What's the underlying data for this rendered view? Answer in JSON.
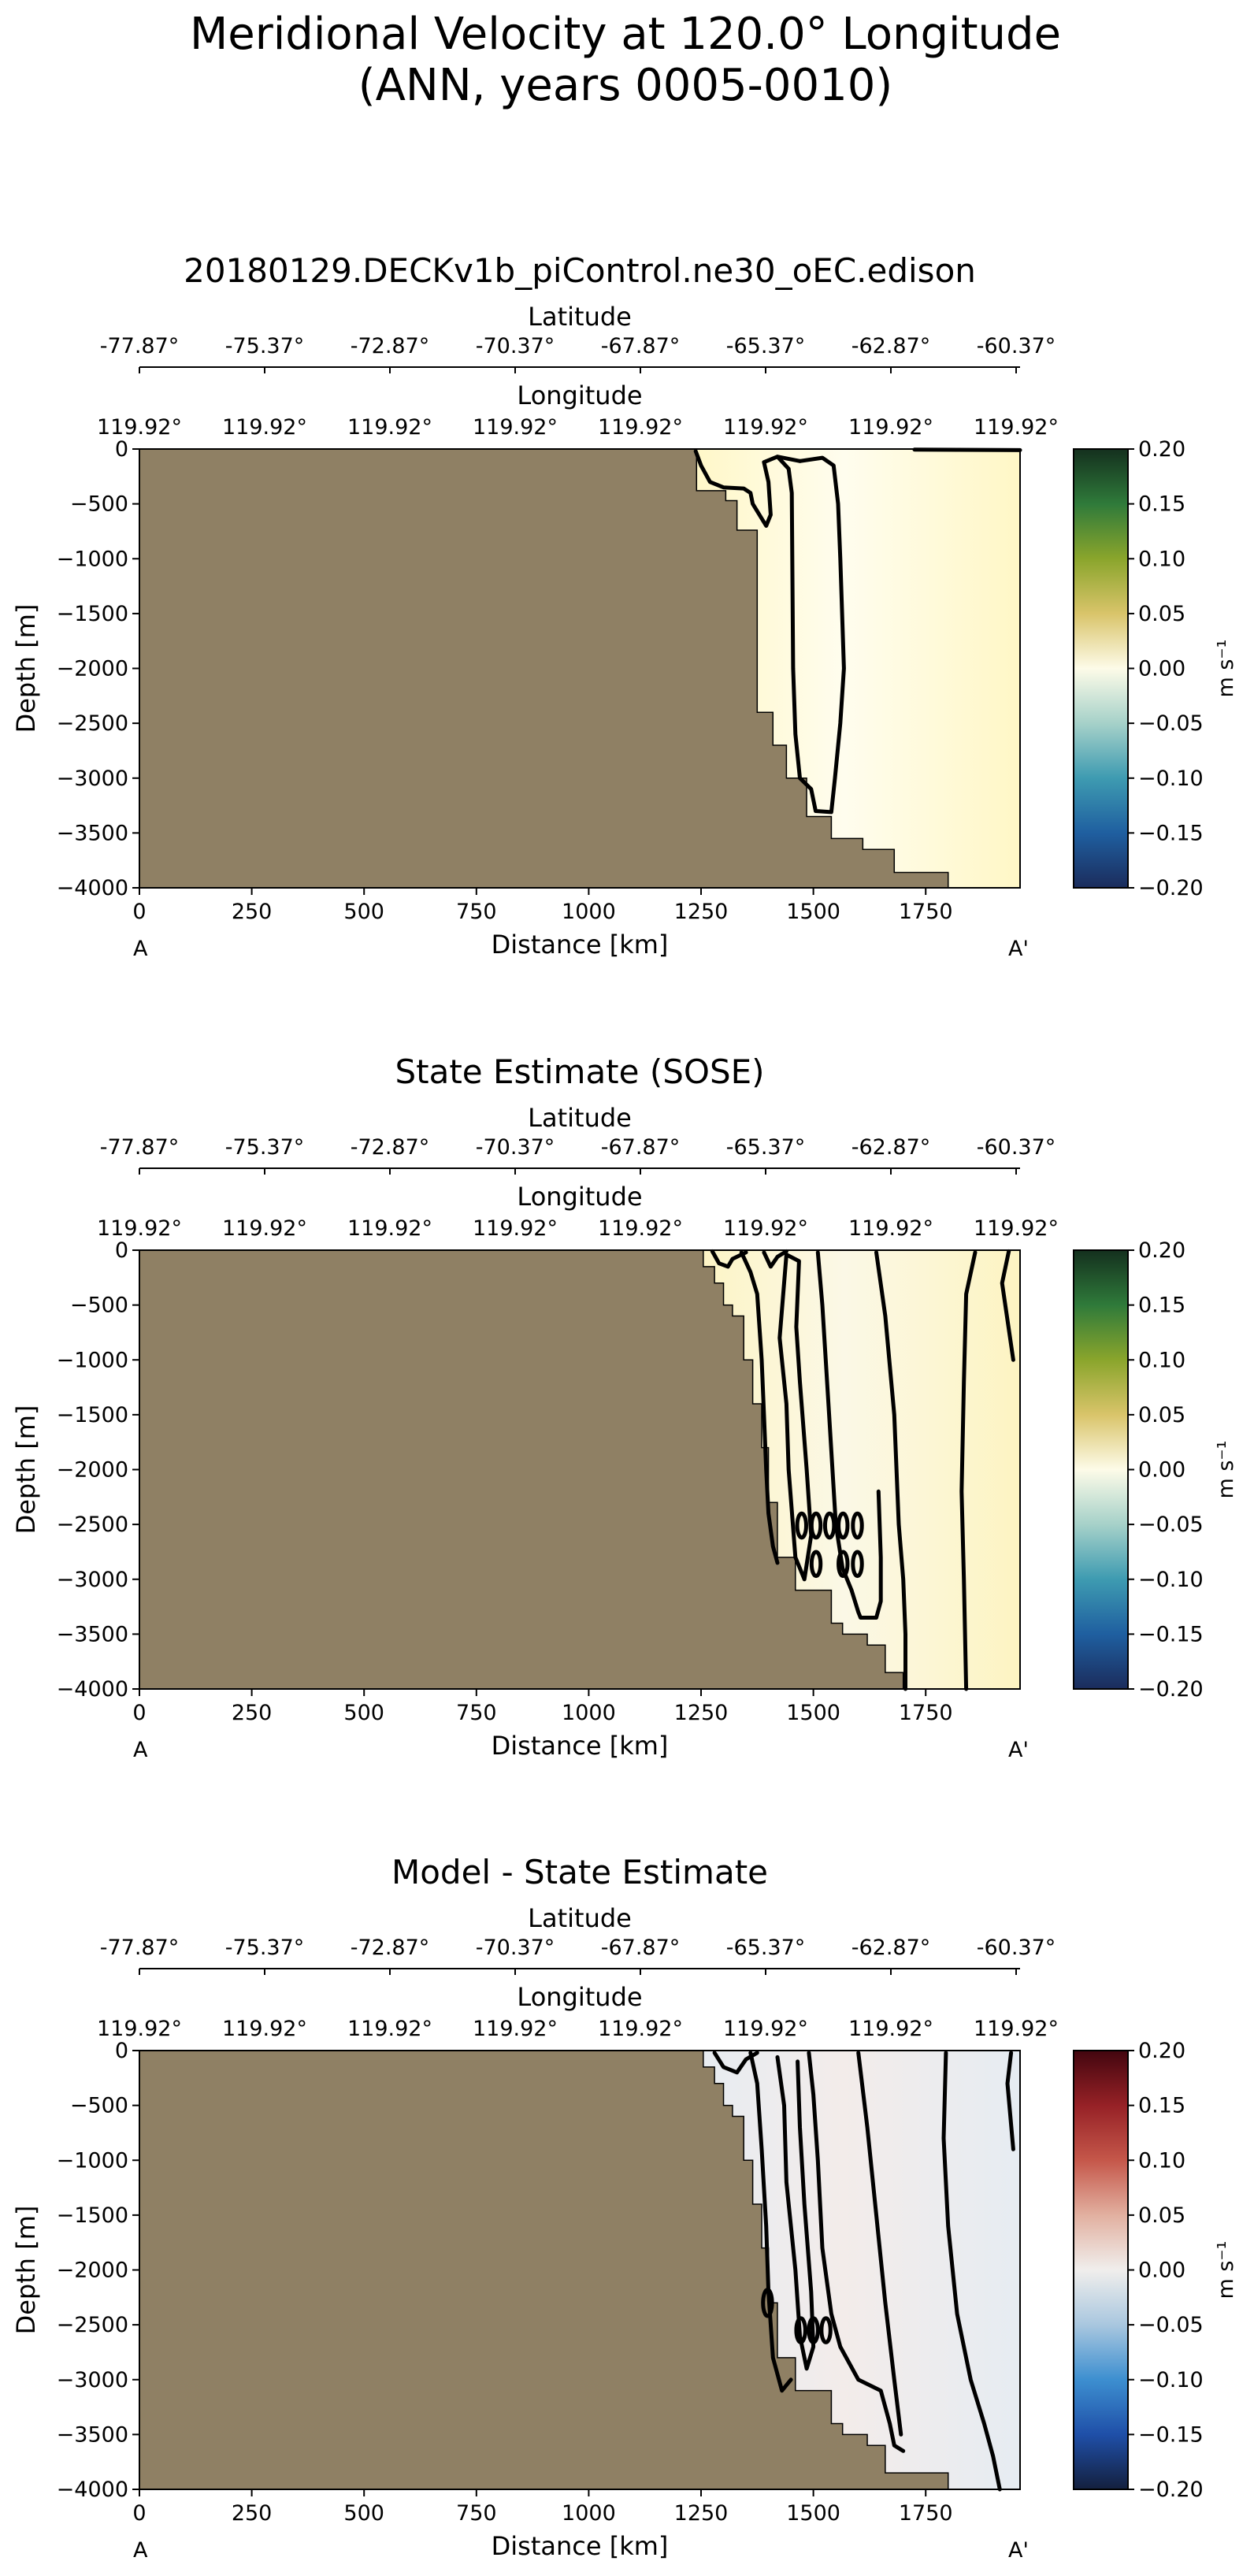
{
  "figure": {
    "title_line1": "Meridional Velocity at 120.0° Longitude",
    "title_line2": "(ANN, years 0005-0010)"
  },
  "chart_data": [
    {
      "type": "heatmap",
      "title": "20180129.DECKv1b_piControl.ne30_oEC.edison",
      "xlabel": "Distance [km]",
      "ylabel": "Depth [m]",
      "xlim": [
        0,
        1960
      ],
      "ylim": [
        -4000,
        0
      ],
      "x_ticks": [
        0,
        250,
        500,
        750,
        1000,
        1250,
        1500,
        1750
      ],
      "y_ticks": [
        0,
        -500,
        -1000,
        -1500,
        -2000,
        -2500,
        -3000,
        -3500,
        -4000
      ],
      "lat_label": "Latitude",
      "lat_ticks": [
        "-77.87°",
        "-75.37°",
        "-72.87°",
        "-70.37°",
        "-67.87°",
        "-65.37°",
        "-62.87°",
        "-60.37°"
      ],
      "lon_label": "Longitude",
      "lon_ticks": [
        "119.92°",
        "119.92°",
        "119.92°",
        "119.92°",
        "119.92°",
        "119.92°",
        "119.92°",
        "119.92°"
      ],
      "section_start": "A",
      "section_end": "A'",
      "colorbar": {
        "label": "m s⁻¹",
        "ticks": [
          "0.20",
          "0.15",
          "0.10",
          "0.05",
          "0.00",
          "−0.05",
          "−0.10",
          "−0.15",
          "−0.20"
        ],
        "range": [
          -0.2,
          0.2
        ],
        "colormap": "delta",
        "colors": [
          "#1b2c5c",
          "#1f5fa0",
          "#3e9bb1",
          "#a6d1c9",
          "#fdfbe8",
          "#d9c46a",
          "#8aa52c",
          "#2f7a3a",
          "#14301e"
        ]
      },
      "land_color": "#8f8064",
      "field_color": "#fffdee",
      "field_tint": "#fff7c6",
      "bathymetry": [
        [
          1240,
          0
        ],
        [
          1240,
          -380
        ],
        [
          1305,
          -380
        ],
        [
          1305,
          -470
        ],
        [
          1330,
          -470
        ],
        [
          1330,
          -740
        ],
        [
          1375,
          -740
        ],
        [
          1375,
          -2400
        ],
        [
          1410,
          -2400
        ],
        [
          1410,
          -2700
        ],
        [
          1440,
          -2700
        ],
        [
          1440,
          -3000
        ],
        [
          1485,
          -3000
        ],
        [
          1485,
          -3350
        ],
        [
          1540,
          -3350
        ],
        [
          1540,
          -3550
        ],
        [
          1610,
          -3550
        ],
        [
          1610,
          -3650
        ],
        [
          1680,
          -3650
        ],
        [
          1680,
          -3860
        ],
        [
          1800,
          -3860
        ],
        [
          1800,
          -4000
        ]
      ],
      "zero_contours": [
        [
          [
            1238,
            -20
          ],
          [
            1250,
            -150
          ],
          [
            1270,
            -300
          ],
          [
            1300,
            -350
          ],
          [
            1345,
            -360
          ],
          [
            1360,
            -400
          ],
          [
            1365,
            -500
          ],
          [
            1395,
            -700
          ],
          [
            1405,
            -600
          ],
          [
            1400,
            -300
          ],
          [
            1390,
            -120
          ],
          [
            1420,
            -70
          ],
          [
            1470,
            -110
          ]
        ],
        [
          [
            1420,
            -70
          ],
          [
            1445,
            -180
          ],
          [
            1452,
            -400
          ],
          [
            1455,
            -2000
          ],
          [
            1460,
            -2600
          ],
          [
            1470,
            -3000
          ],
          [
            1495,
            -3100
          ],
          [
            1505,
            -3300
          ],
          [
            1540,
            -3310
          ],
          [
            1548,
            -3000
          ],
          [
            1560,
            -2500
          ],
          [
            1568,
            -2000
          ],
          [
            1560,
            -1000
          ],
          [
            1555,
            -500
          ],
          [
            1545,
            -150
          ],
          [
            1520,
            -80
          ],
          [
            1470,
            -110
          ]
        ],
        [
          [
            1725,
            -6
          ],
          [
            1960,
            -10
          ]
        ]
      ]
    },
    {
      "type": "heatmap",
      "title": "State Estimate (SOSE)",
      "xlabel": "Distance [km]",
      "ylabel": "Depth [m]",
      "xlim": [
        0,
        1960
      ],
      "ylim": [
        -4000,
        0
      ],
      "x_ticks": [
        0,
        250,
        500,
        750,
        1000,
        1250,
        1500,
        1750
      ],
      "y_ticks": [
        0,
        -500,
        -1000,
        -1500,
        -2000,
        -2500,
        -3000,
        -3500,
        -4000
      ],
      "lat_label": "Latitude",
      "lat_ticks": [
        "-77.87°",
        "-75.37°",
        "-72.87°",
        "-70.37°",
        "-67.87°",
        "-65.37°",
        "-62.87°",
        "-60.37°"
      ],
      "lon_label": "Longitude",
      "lon_ticks": [
        "119.92°",
        "119.92°",
        "119.92°",
        "119.92°",
        "119.92°",
        "119.92°",
        "119.92°",
        "119.92°"
      ],
      "section_start": "A",
      "section_end": "A'",
      "colorbar": {
        "label": "m s⁻¹",
        "ticks": [
          "0.20",
          "0.15",
          "0.10",
          "0.05",
          "0.00",
          "−0.05",
          "−0.10",
          "−0.15",
          "−0.20"
        ],
        "range": [
          -0.2,
          0.2
        ],
        "colormap": "delta",
        "colors": [
          "#1b2c5c",
          "#1f5fa0",
          "#3e9bb1",
          "#a6d1c9",
          "#fdfbe8",
          "#d9c46a",
          "#8aa52c",
          "#2f7a3a",
          "#14301e"
        ]
      },
      "land_color": "#8f8064",
      "field_color": "#fbf8e6",
      "field_tint": "#fdf4c2",
      "bathymetry": [
        [
          1255,
          0
        ],
        [
          1255,
          -150
        ],
        [
          1280,
          -150
        ],
        [
          1280,
          -300
        ],
        [
          1300,
          -300
        ],
        [
          1300,
          -500
        ],
        [
          1320,
          -500
        ],
        [
          1320,
          -600
        ],
        [
          1345,
          -600
        ],
        [
          1345,
          -1000
        ],
        [
          1365,
          -1000
        ],
        [
          1365,
          -1400
        ],
        [
          1385,
          -1400
        ],
        [
          1385,
          -1800
        ],
        [
          1400,
          -1800
        ],
        [
          1400,
          -2300
        ],
        [
          1420,
          -2300
        ],
        [
          1420,
          -2800
        ],
        [
          1460,
          -2800
        ],
        [
          1460,
          -3100
        ],
        [
          1540,
          -3100
        ],
        [
          1540,
          -3400
        ],
        [
          1565,
          -3400
        ],
        [
          1565,
          -3500
        ],
        [
          1620,
          -3500
        ],
        [
          1620,
          -3600
        ],
        [
          1660,
          -3600
        ],
        [
          1660,
          -3850
        ],
        [
          1700,
          -3850
        ],
        [
          1700,
          -4000
        ]
      ],
      "zero_contours": [
        [
          [
            1275,
            -10
          ],
          [
            1290,
            -120
          ],
          [
            1310,
            -150
          ],
          [
            1320,
            -80
          ],
          [
            1350,
            -20
          ]
        ],
        [
          [
            1340,
            -20
          ],
          [
            1360,
            -200
          ],
          [
            1375,
            -400
          ],
          [
            1385,
            -1000
          ],
          [
            1390,
            -1500
          ],
          [
            1395,
            -2000
          ],
          [
            1400,
            -2400
          ],
          [
            1410,
            -2700
          ],
          [
            1420,
            -2850
          ]
        ],
        [
          [
            1390,
            -20
          ],
          [
            1405,
            -150
          ],
          [
            1420,
            -60
          ],
          [
            1440,
            -10
          ]
        ],
        [
          [
            1440,
            -40
          ],
          [
            1425,
            -800
          ],
          [
            1440,
            -1400
          ],
          [
            1445,
            -2000
          ],
          [
            1460,
            -2800
          ],
          [
            1480,
            -3000
          ],
          [
            1495,
            -2600
          ],
          [
            1485,
            -2000
          ],
          [
            1470,
            -1200
          ],
          [
            1462,
            -700
          ],
          [
            1468,
            -100
          ],
          [
            1440,
            -40
          ]
        ],
        [
          [
            1510,
            -20
          ],
          [
            1520,
            -500
          ],
          [
            1535,
            -1500
          ],
          [
            1550,
            -2500
          ],
          [
            1565,
            -2900
          ],
          [
            1585,
            -3100
          ],
          [
            1600,
            -3300
          ],
          [
            1605,
            -3350
          ],
          [
            1640,
            -3350
          ],
          [
            1650,
            -3200
          ],
          [
            1650,
            -2800
          ],
          [
            1645,
            -2200
          ]
        ],
        [
          [
            1640,
            -20
          ],
          [
            1660,
            -600
          ],
          [
            1680,
            -1500
          ],
          [
            1690,
            -2500
          ],
          [
            1700,
            -3000
          ],
          [
            1705,
            -3500
          ],
          [
            1705,
            -4000
          ]
        ],
        [
          [
            1860,
            -20
          ],
          [
            1840,
            -400
          ],
          [
            1835,
            -1200
          ],
          [
            1830,
            -2200
          ],
          [
            1835,
            -3000
          ],
          [
            1840,
            -4000
          ]
        ],
        [
          [
            1935,
            -10
          ],
          [
            1920,
            -300
          ],
          [
            1945,
            -1000
          ]
        ]
      ],
      "closed_contours": [
        [
          1474,
          -2510,
          10,
          110
        ],
        [
          1506,
          -2510,
          10,
          110
        ],
        [
          1536,
          -2510,
          10,
          110
        ],
        [
          1566,
          -2510,
          10,
          110
        ],
        [
          1598,
          -2510,
          10,
          110
        ],
        [
          1566,
          -2860,
          10,
          110
        ],
        [
          1598,
          -2860,
          10,
          110
        ],
        [
          1506,
          -2860,
          10,
          110
        ]
      ]
    },
    {
      "type": "heatmap",
      "title": "Model - State Estimate",
      "xlabel": "Distance [km]",
      "ylabel": "Depth [m]",
      "xlim": [
        0,
        1960
      ],
      "ylim": [
        -4000,
        0
      ],
      "x_ticks": [
        0,
        250,
        500,
        750,
        1000,
        1250,
        1500,
        1750
      ],
      "y_ticks": [
        0,
        -500,
        -1000,
        -1500,
        -2000,
        -2500,
        -3000,
        -3500,
        -4000
      ],
      "lat_label": "Latitude",
      "lat_ticks": [
        "-77.87°",
        "-75.37°",
        "-72.87°",
        "-70.37°",
        "-67.87°",
        "-65.37°",
        "-62.87°",
        "-60.37°"
      ],
      "lon_label": "Longitude",
      "lon_ticks": [
        "119.92°",
        "119.92°",
        "119.92°",
        "119.92°",
        "119.92°",
        "119.92°",
        "119.92°",
        "119.92°"
      ],
      "section_start": "A",
      "section_end": "A'",
      "colorbar": {
        "label": "m s⁻¹",
        "ticks": [
          "0.20",
          "0.15",
          "0.10",
          "0.05",
          "0.00",
          "−0.05",
          "−0.10",
          "−0.15",
          "−0.20"
        ],
        "range": [
          -0.2,
          0.2
        ],
        "colormap": "balance",
        "colors": [
          "#14203e",
          "#1f4fa8",
          "#3d8fd0",
          "#a9c7df",
          "#f0eeec",
          "#e2b0a0",
          "#c5574a",
          "#962126",
          "#43060f"
        ]
      },
      "land_color": "#8f8064",
      "field_color": "#f3ecea",
      "field_tint": "#e6ecf2",
      "bathymetry": [
        [
          1255,
          0
        ],
        [
          1255,
          -150
        ],
        [
          1280,
          -150
        ],
        [
          1280,
          -300
        ],
        [
          1300,
          -300
        ],
        [
          1300,
          -500
        ],
        [
          1320,
          -500
        ],
        [
          1320,
          -600
        ],
        [
          1345,
          -600
        ],
        [
          1345,
          -1000
        ],
        [
          1365,
          -1000
        ],
        [
          1365,
          -1400
        ],
        [
          1385,
          -1400
        ],
        [
          1385,
          -1800
        ],
        [
          1400,
          -1800
        ],
        [
          1400,
          -2300
        ],
        [
          1420,
          -2300
        ],
        [
          1420,
          -2800
        ],
        [
          1460,
          -2800
        ],
        [
          1460,
          -3100
        ],
        [
          1540,
          -3100
        ],
        [
          1540,
          -3400
        ],
        [
          1565,
          -3400
        ],
        [
          1565,
          -3500
        ],
        [
          1620,
          -3500
        ],
        [
          1620,
          -3600
        ],
        [
          1660,
          -3600
        ],
        [
          1660,
          -3850
        ],
        [
          1800,
          -3850
        ],
        [
          1800,
          -4000
        ]
      ],
      "zero_contours": [
        [
          [
            1280,
            -20
          ],
          [
            1300,
            -150
          ],
          [
            1330,
            -200
          ],
          [
            1350,
            -80
          ],
          [
            1375,
            -20
          ]
        ],
        [
          [
            1360,
            -20
          ],
          [
            1375,
            -300
          ],
          [
            1385,
            -900
          ],
          [
            1395,
            -1600
          ],
          [
            1400,
            -2200
          ],
          [
            1410,
            -2800
          ],
          [
            1430,
            -3100
          ],
          [
            1450,
            -3000
          ]
        ],
        [
          [
            1420,
            -60
          ],
          [
            1435,
            -500
          ],
          [
            1440,
            -1200
          ],
          [
            1460,
            -2000
          ],
          [
            1470,
            -2600
          ],
          [
            1485,
            -2900
          ],
          [
            1500,
            -2700
          ],
          [
            1495,
            -2200
          ],
          [
            1480,
            -1400
          ],
          [
            1470,
            -700
          ],
          [
            1465,
            -100
          ]
        ],
        [
          [
            1490,
            -20
          ],
          [
            1500,
            -400
          ],
          [
            1510,
            -1000
          ],
          [
            1520,
            -1800
          ],
          [
            1540,
            -2400
          ],
          [
            1560,
            -2700
          ],
          [
            1600,
            -3000
          ],
          [
            1650,
            -3100
          ],
          [
            1670,
            -3400
          ],
          [
            1680,
            -3600
          ],
          [
            1700,
            -3650
          ]
        ],
        [
          [
            1600,
            -20
          ],
          [
            1620,
            -700
          ],
          [
            1640,
            -1500
          ],
          [
            1660,
            -2300
          ],
          [
            1680,
            -3000
          ],
          [
            1695,
            -3500
          ]
        ],
        [
          [
            1795,
            -20
          ],
          [
            1790,
            -800
          ],
          [
            1800,
            -1600
          ],
          [
            1820,
            -2400
          ],
          [
            1850,
            -3000
          ],
          [
            1880,
            -3400
          ],
          [
            1900,
            -3700
          ],
          [
            1915,
            -4000
          ]
        ],
        [
          [
            1940,
            -20
          ],
          [
            1932,
            -300
          ],
          [
            1945,
            -900
          ]
        ]
      ],
      "closed_contours": [
        [
          1398,
          -2300,
          10,
          120
        ],
        [
          1472,
          -2550,
          10,
          110
        ],
        [
          1500,
          -2550,
          10,
          110
        ],
        [
          1528,
          -2550,
          10,
          110
        ]
      ]
    }
  ]
}
